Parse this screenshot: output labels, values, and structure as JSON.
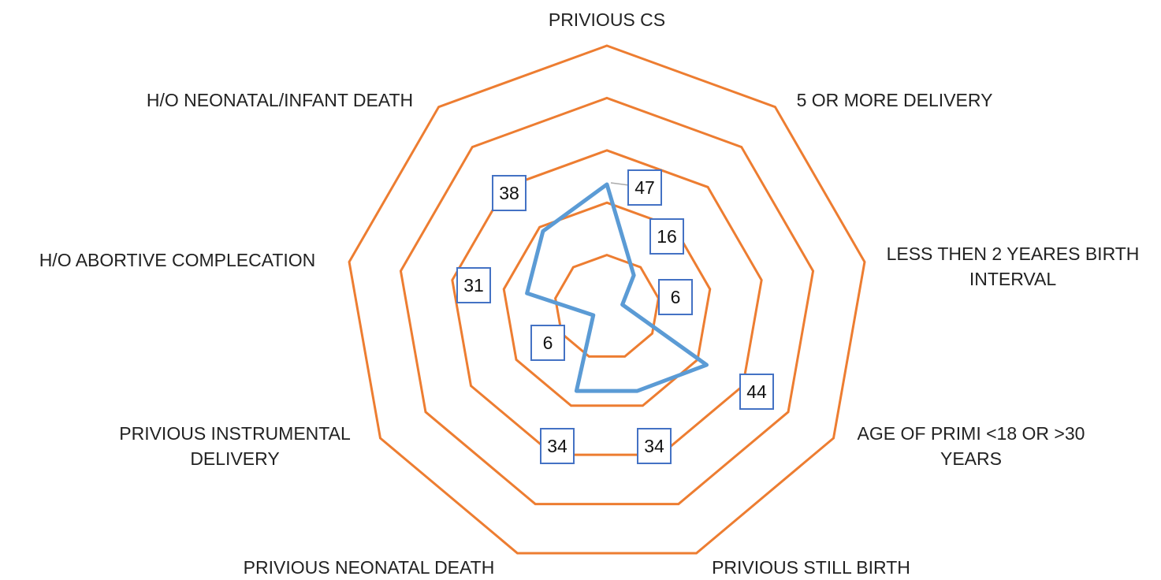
{
  "chart_data": {
    "type": "radar",
    "categories": [
      "PRIVIOUS CS",
      "5 OR MORE DELIVERY",
      "LESS THEN 2 YEARES BIRTH INTERVAL",
      "AGE OF PRIMI <18 OR >30 YEARS",
      "PRIVIOUS STILL BIRTH",
      "PRIVIOUS NEONATAL DEATH",
      "PRIVIOUS INSTRUMENTAL DELIVERY",
      "H/O ABORTIVE COMPLECATION",
      "H/O NEONATAL/INFANT DEATH"
    ],
    "values": [
      47,
      16,
      6,
      44,
      34,
      34,
      6,
      31,
      38
    ],
    "color": "#5b9bd5",
    "grid_color": "#ed7d31",
    "ylim": [
      0,
      100
    ],
    "yticks": [
      0,
      20,
      40,
      60,
      80,
      100
    ],
    "grid": true
  }
}
